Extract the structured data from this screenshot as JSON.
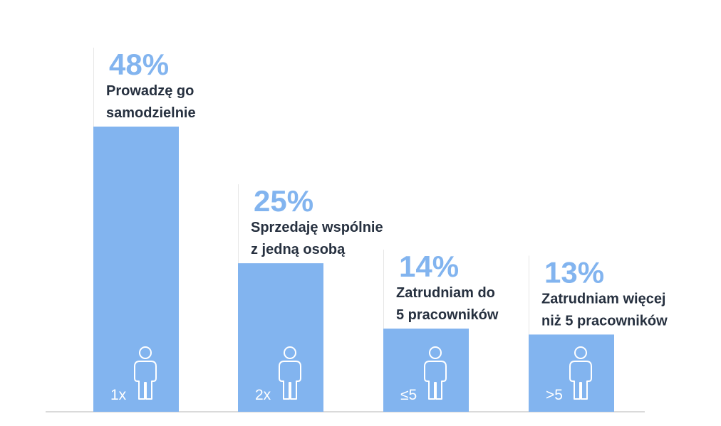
{
  "chart_data": {
    "type": "bar",
    "title": "",
    "xlabel": "",
    "ylabel": "",
    "ylim": [
      0,
      48
    ],
    "grid": false,
    "categories": [
      "Prowadzę go samodzielnie",
      "Sprzedaję wspólnie z jedną osobą",
      "Zatrudniam do 5 pracowników",
      "Zatrudniam więcej niż 5 pracowników"
    ],
    "values": [
      48,
      25,
      14,
      13
    ],
    "bars": [
      {
        "value": 48,
        "value_label": "48%",
        "label_lines": [
          "Prowadzę go",
          "samodzielnie"
        ],
        "count_label": "1x",
        "icon": "person-icon"
      },
      {
        "value": 25,
        "value_label": "25%",
        "label_lines": [
          "Sprzedaję wspólnie",
          "z jedną osobą"
        ],
        "count_label": "2x",
        "icon": "person-icon"
      },
      {
        "value": 14,
        "value_label": "14%",
        "label_lines": [
          "Zatrudniam do",
          "5 pracowników"
        ],
        "count_label": "≤5",
        "icon": "person-icon"
      },
      {
        "value": 13,
        "value_label": "13%",
        "label_lines": [
          "Zatrudniam więcej",
          "niż 5 pracowników"
        ],
        "count_label": ">5",
        "icon": "person-icon"
      }
    ],
    "colors": {
      "bar": "#82b4ef",
      "value_label": "#82b4ef",
      "category_label": "#26303f",
      "bar_text": "#ffffff",
      "guide_line": "#e6e6e6",
      "baseline": "#dadada"
    }
  }
}
